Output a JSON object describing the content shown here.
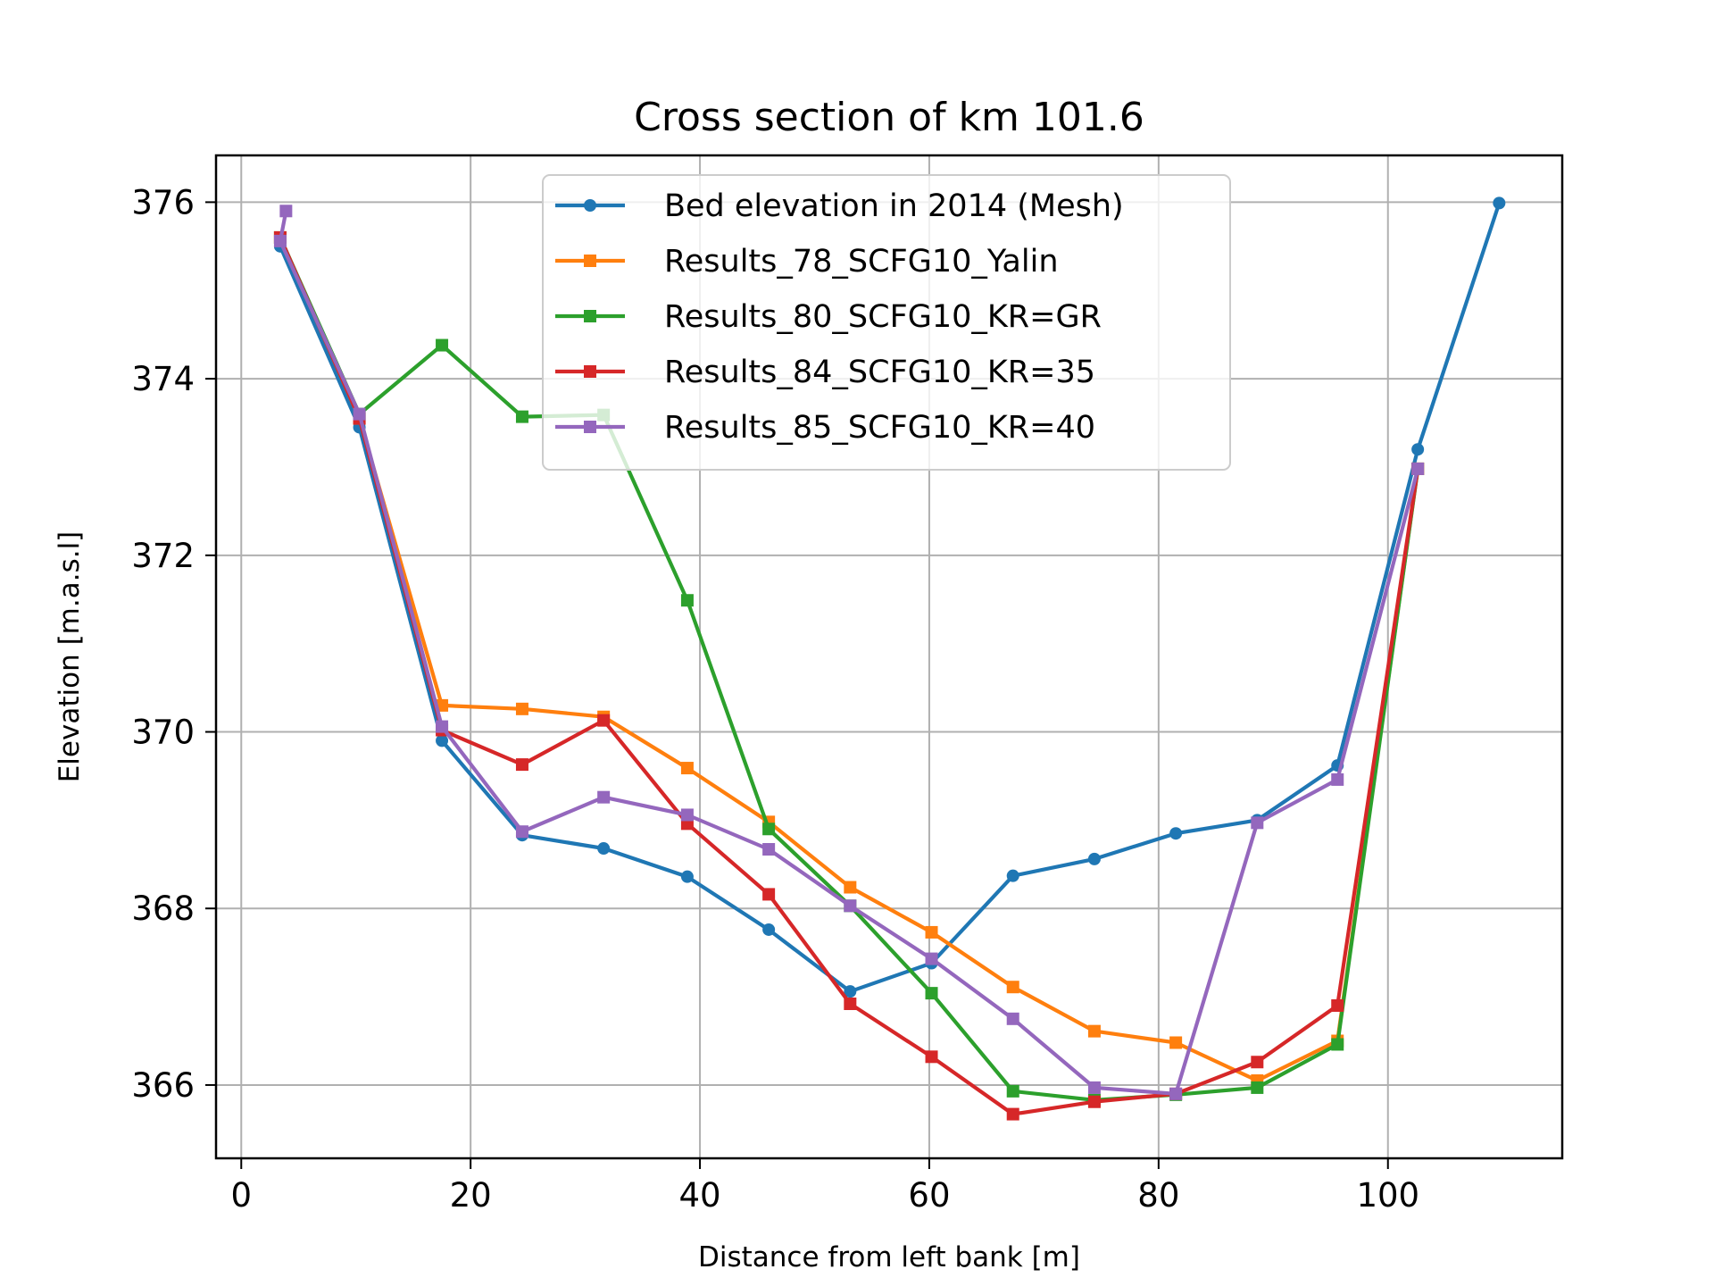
{
  "chart_data": {
    "type": "line",
    "title": "Cross section of km 101.6",
    "xlabel": "Distance from left bank [m]",
    "ylabel": "Elevation [m.a.s.l]",
    "xlim": [
      -2.2,
      115.2
    ],
    "ylim": [
      365.17,
      376.53
    ],
    "xticks": [
      0,
      20,
      40,
      60,
      80,
      100
    ],
    "yticks": [
      366,
      368,
      370,
      372,
      374,
      376
    ],
    "grid": true,
    "legend_position": "top-center",
    "series": [
      {
        "name": "Bed elevation in 2014 (Mesh)",
        "color": "#1f77b4",
        "marker": "circle",
        "x": [
          3.4,
          10.3,
          17.5,
          24.5,
          31.6,
          38.9,
          46.0,
          53.1,
          60.2,
          67.3,
          74.4,
          81.5,
          88.6,
          95.6,
          102.6,
          109.7
        ],
        "y": [
          375.5,
          373.45,
          369.9,
          368.83,
          368.68,
          368.36,
          367.76,
          367.06,
          367.38,
          368.37,
          368.56,
          368.85,
          369.0,
          369.62,
          373.2,
          375.99
        ]
      },
      {
        "name": "Results_78_SCFG10_Yalin",
        "color": "#ff7f0e",
        "marker": "square",
        "x": [
          3.4,
          10.3,
          17.5,
          24.5,
          31.6,
          38.9,
          46.0,
          53.1,
          60.2,
          67.3,
          74.4,
          81.5,
          88.6,
          95.6,
          102.6
        ],
        "y": [
          375.6,
          373.55,
          370.3,
          370.26,
          370.17,
          369.59,
          368.98,
          368.24,
          367.73,
          367.11,
          366.61,
          366.48,
          366.05,
          366.5,
          372.98
        ]
      },
      {
        "name": "Results_80_SCFG10_KR=GR",
        "color": "#2ca02c",
        "marker": "square",
        "x": [
          3.4,
          10.3,
          17.5,
          24.5,
          31.6,
          38.9,
          46.0,
          53.1,
          60.2,
          67.3,
          74.4,
          81.5,
          88.6,
          95.6,
          102.6
        ],
        "y": [
          375.6,
          373.6,
          374.38,
          373.57,
          373.59,
          371.49,
          368.9,
          368.03,
          367.04,
          365.93,
          365.83,
          365.89,
          365.97,
          366.46,
          372.98
        ]
      },
      {
        "name": "Results_84_SCFG10_KR=35",
        "color": "#d62728",
        "marker": "square",
        "x": [
          3.4,
          10.3,
          17.5,
          24.5,
          31.6,
          38.9,
          46.0,
          53.1,
          60.2,
          67.3,
          74.4,
          81.5,
          88.6,
          95.6,
          102.6
        ],
        "y": [
          375.6,
          373.55,
          370.02,
          369.63,
          370.13,
          368.96,
          368.16,
          366.92,
          366.32,
          365.67,
          365.81,
          365.9,
          366.26,
          366.9,
          372.98
        ]
      },
      {
        "name": "Results_85_SCFG10_KR=40",
        "color": "#9467bd",
        "marker": "square",
        "x": [
          3.9,
          3.4,
          10.3,
          17.5,
          24.5,
          31.6,
          38.9,
          46.0,
          53.1,
          60.2,
          67.3,
          74.4,
          81.5,
          88.6,
          95.6,
          102.6
        ],
        "y": [
          375.9,
          375.56,
          373.6,
          370.06,
          368.87,
          369.26,
          369.06,
          368.67,
          368.03,
          367.43,
          366.75,
          365.97,
          365.9,
          368.97,
          369.46,
          372.98
        ]
      }
    ]
  }
}
